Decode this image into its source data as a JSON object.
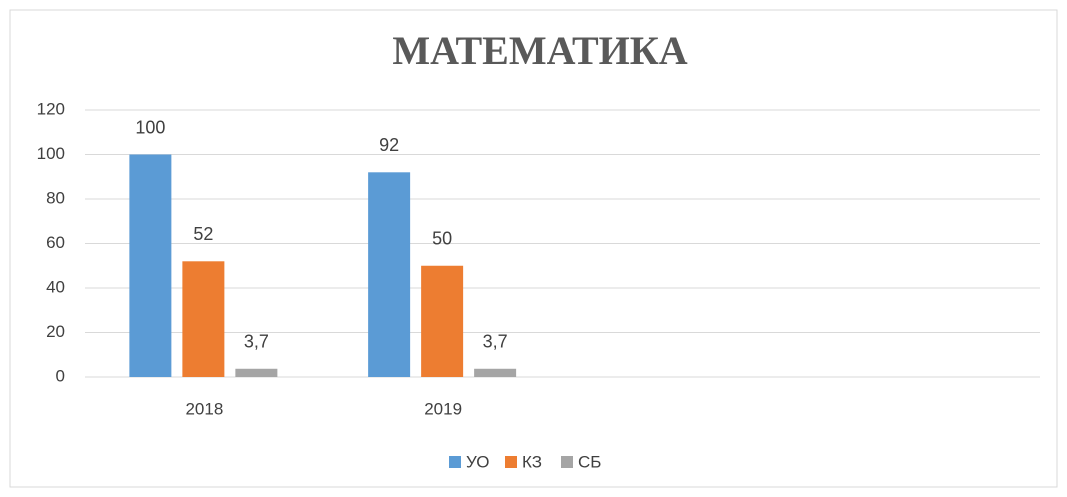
{
  "chart_data": {
    "type": "bar",
    "title": "МАТЕМАТИКА",
    "categories": [
      "2018",
      "2019",
      null,
      null
    ],
    "series": [
      {
        "name": "УО",
        "color": "#5b9bd5",
        "values": [
          100,
          92,
          null,
          null
        ]
      },
      {
        "name": "КЗ",
        "color": "#ed7d31",
        "values": [
          52,
          50,
          null,
          null
        ]
      },
      {
        "name": "СБ",
        "color": "#a5a5a5",
        "values": [
          3.7,
          3.7,
          null,
          null
        ],
        "value_labels": [
          "3,7",
          "3,7",
          null,
          null
        ]
      }
    ],
    "ylim": [
      0,
      120
    ],
    "yticks": [
      0,
      20,
      40,
      60,
      80,
      100,
      120
    ],
    "grid": true,
    "legend": "bottom"
  }
}
